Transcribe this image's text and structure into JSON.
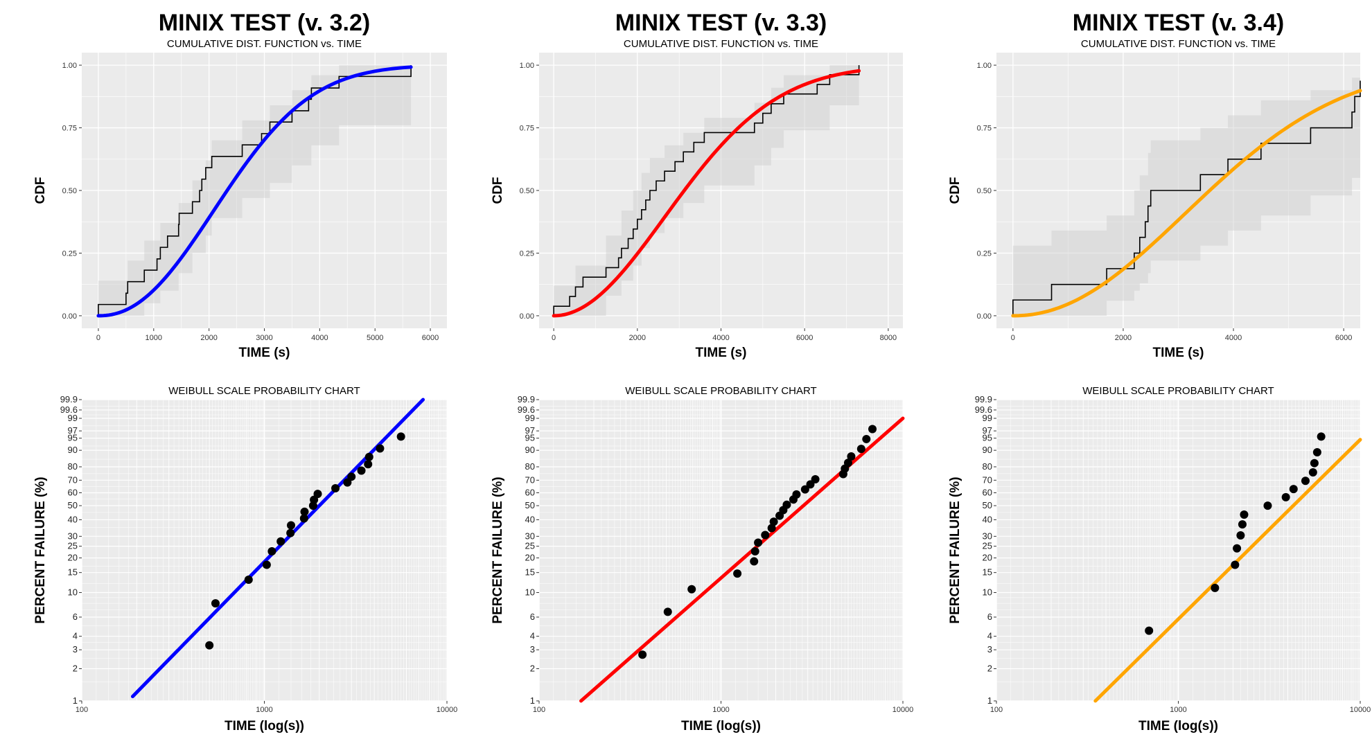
{
  "chart_data": [
    {
      "type": "line",
      "panel": "cdf",
      "title": "MINIX TEST (v. 3.2)",
      "subtitle": "CUMULATIVE DIST. FUNCTION vs. TIME",
      "xlabel": "TIME (s)",
      "ylabel": "CDF",
      "xlim": [
        -300,
        6300
      ],
      "ylim": [
        -0.05,
        1.05
      ],
      "xticks": [
        0,
        1000,
        2000,
        3000,
        4000,
        5000,
        6000
      ],
      "yticks": [
        "0.00",
        "0.25",
        "0.50",
        "0.75",
        "1.00"
      ],
      "fit_color": "#0000ff",
      "fit_weibull": {
        "shape": 2.2,
        "scale": 2750,
        "xmax": 5650
      },
      "ecdf": [
        [
          0,
          0.045
        ],
        [
          500,
          0.09
        ],
        [
          530,
          0.136
        ],
        [
          830,
          0.182
        ],
        [
          1060,
          0.227
        ],
        [
          1120,
          0.273
        ],
        [
          1250,
          0.318
        ],
        [
          1450,
          0.364
        ],
        [
          1460,
          0.409
        ],
        [
          1700,
          0.455
        ],
        [
          1830,
          0.5
        ],
        [
          1870,
          0.545
        ],
        [
          1940,
          0.591
        ],
        [
          2050,
          0.636
        ],
        [
          2600,
          0.682
        ],
        [
          2950,
          0.727
        ],
        [
          3100,
          0.773
        ],
        [
          3500,
          0.818
        ],
        [
          3800,
          0.864
        ],
        [
          3850,
          0.909
        ],
        [
          4350,
          0.955
        ],
        [
          5650,
          1.0
        ]
      ],
      "conf_band": [
        [
          0,
          0.0,
          0.14
        ],
        [
          530,
          0.0,
          0.22
        ],
        [
          830,
          0.05,
          0.3
        ],
        [
          1120,
          0.1,
          0.37
        ],
        [
          1450,
          0.17,
          0.45
        ],
        [
          1700,
          0.25,
          0.54
        ],
        [
          1940,
          0.32,
          0.62
        ],
        [
          2050,
          0.39,
          0.7
        ],
        [
          2600,
          0.47,
          0.78
        ],
        [
          3100,
          0.53,
          0.84
        ],
        [
          3500,
          0.6,
          0.9
        ],
        [
          3850,
          0.68,
          0.96
        ],
        [
          4350,
          0.76,
          1.0
        ]
      ]
    },
    {
      "type": "line",
      "panel": "cdf",
      "title": "MINIX TEST (v. 3.3)",
      "subtitle": "CUMULATIVE DIST. FUNCTION vs. TIME",
      "xlabel": "TIME (s)",
      "ylabel": "CDF",
      "xlim": [
        -350,
        8350
      ],
      "ylim": [
        -0.05,
        1.05
      ],
      "xticks": [
        0,
        2000,
        4000,
        6000,
        8000
      ],
      "yticks": [
        "0.00",
        "0.25",
        "0.50",
        "0.75",
        "1.00"
      ],
      "fit_color": "#ff0000",
      "fit_weibull": {
        "shape": 2.0,
        "scale": 3750,
        "xmax": 7300
      },
      "ecdf": [
        [
          0,
          0.038
        ],
        [
          380,
          0.077
        ],
        [
          520,
          0.115
        ],
        [
          700,
          0.154
        ],
        [
          1250,
          0.192
        ],
        [
          1550,
          0.231
        ],
        [
          1620,
          0.269
        ],
        [
          1780,
          0.308
        ],
        [
          1900,
          0.346
        ],
        [
          2000,
          0.385
        ],
        [
          2100,
          0.423
        ],
        [
          2200,
          0.462
        ],
        [
          2300,
          0.5
        ],
        [
          2450,
          0.538
        ],
        [
          2650,
          0.577
        ],
        [
          2900,
          0.615
        ],
        [
          3100,
          0.654
        ],
        [
          3350,
          0.692
        ],
        [
          3600,
          0.731
        ],
        [
          4800,
          0.769
        ],
        [
          5000,
          0.808
        ],
        [
          5200,
          0.846
        ],
        [
          5500,
          0.885
        ],
        [
          6300,
          0.923
        ],
        [
          6600,
          0.962
        ],
        [
          7300,
          1.0
        ]
      ],
      "conf_band": [
        [
          0,
          0.0,
          0.12
        ],
        [
          520,
          0.0,
          0.2
        ],
        [
          1250,
          0.08,
          0.32
        ],
        [
          1620,
          0.14,
          0.42
        ],
        [
          1900,
          0.2,
          0.5
        ],
        [
          2100,
          0.27,
          0.57
        ],
        [
          2300,
          0.33,
          0.63
        ],
        [
          2650,
          0.39,
          0.68
        ],
        [
          3100,
          0.45,
          0.73
        ],
        [
          3600,
          0.52,
          0.79
        ],
        [
          4800,
          0.6,
          0.85
        ],
        [
          5200,
          0.67,
          0.91
        ],
        [
          5500,
          0.74,
          0.96
        ],
        [
          6600,
          0.84,
          1.0
        ]
      ]
    },
    {
      "type": "line",
      "panel": "cdf",
      "title": "MINIX TEST (v. 3.4)",
      "subtitle": "CUMULATIVE DIST. FUNCTION vs. TIME",
      "xlabel": "TIME (s)",
      "ylabel": "CDF",
      "xlim": [
        -300,
        6300
      ],
      "ylim": [
        -0.05,
        1.05
      ],
      "xticks": [
        0,
        2000,
        4000,
        6000
      ],
      "yticks": [
        "0.00",
        "0.25",
        "0.50",
        "0.75",
        "1.00"
      ],
      "fit_color": "#ffa500",
      "fit_weibull": {
        "shape": 2.1,
        "scale": 4250,
        "xmax": 6300
      },
      "ecdf": [
        [
          0,
          0.063
        ],
        [
          700,
          0.125
        ],
        [
          1700,
          0.188
        ],
        [
          2200,
          0.25
        ],
        [
          2300,
          0.313
        ],
        [
          2400,
          0.375
        ],
        [
          2450,
          0.438
        ],
        [
          2500,
          0.5
        ],
        [
          3400,
          0.563
        ],
        [
          3900,
          0.625
        ],
        [
          4500,
          0.688
        ],
        [
          5400,
          0.75
        ],
        [
          6150,
          0.813
        ],
        [
          6200,
          0.875
        ],
        [
          6300,
          0.938
        ]
      ],
      "conf_band": [
        [
          0,
          0.0,
          0.28
        ],
        [
          700,
          0.0,
          0.34
        ],
        [
          1700,
          0.06,
          0.4
        ],
        [
          2200,
          0.1,
          0.5
        ],
        [
          2300,
          0.13,
          0.56
        ],
        [
          2450,
          0.17,
          0.65
        ],
        [
          2500,
          0.22,
          0.7
        ],
        [
          3400,
          0.28,
          0.75
        ],
        [
          3900,
          0.34,
          0.8
        ],
        [
          4500,
          0.4,
          0.86
        ],
        [
          5400,
          0.48,
          0.9
        ],
        [
          6150,
          0.55,
          0.95
        ]
      ]
    },
    {
      "type": "scatter",
      "panel": "weibull",
      "subtitle": "WEIBULL SCALE PROBABILITY CHART",
      "xlabel": "TIME (log(s))",
      "ylabel": "PERCENT FAILURE (%)",
      "xlim": [
        100,
        10000
      ],
      "xticks": [
        "100",
        "1000",
        "10000"
      ],
      "ylim_percent": [
        1,
        99.9
      ],
      "yticks": [
        "1",
        "2",
        "3",
        "4",
        "6",
        "10",
        "15",
        "20",
        "25",
        "30",
        "40",
        "50",
        "60",
        "70",
        "80",
        "90",
        "95",
        "97",
        "99",
        "99.6",
        "99.9"
      ],
      "line_color": "#0000ff",
      "line": {
        "x": [
          190,
          7400
        ],
        "y": [
          1.1,
          99.9
        ]
      },
      "points": {
        "x": [
          500,
          540,
          820,
          1030,
          1100,
          1230,
          1390,
          1400,
          1650,
          1660,
          1850,
          1870,
          1960,
          2450,
          2850,
          3000,
          3400,
          3700,
          3750,
          4300,
          5600
        ],
        "y": [
          3.3,
          8.0,
          13.0,
          17.5,
          22.7,
          27.3,
          31.8,
          36.4,
          40.9,
          45.5,
          50.0,
          54.5,
          59.1,
          63.6,
          68.2,
          72.7,
          77.3,
          81.8,
          86.4,
          90.9,
          95.5
        ]
      }
    },
    {
      "type": "scatter",
      "panel": "weibull",
      "subtitle": "WEIBULL SCALE PROBABILITY CHART",
      "xlabel": "TIME (log(s))",
      "ylabel": "PERCENT FAILURE (%)",
      "xlim": [
        100,
        10000
      ],
      "xticks": [
        "100",
        "1000",
        "10000"
      ],
      "ylim_percent": [
        1,
        99.9
      ],
      "yticks": [
        "1",
        "2",
        "3",
        "4",
        "6",
        "10",
        "15",
        "20",
        "25",
        "30",
        "40",
        "50",
        "60",
        "70",
        "80",
        "90",
        "95",
        "97",
        "99",
        "99.6",
        "99.9"
      ],
      "line_color": "#ff0000",
      "line": {
        "x": [
          170,
          10000
        ],
        "y": [
          1.0,
          99.0
        ]
      },
      "points": {
        "x": [
          370,
          510,
          690,
          1230,
          1520,
          1540,
          1600,
          1750,
          1900,
          1950,
          2100,
          2200,
          2300,
          2500,
          2600,
          2900,
          3100,
          3300,
          4700,
          4800,
          5000,
          5200,
          5900,
          6300,
          6800
        ],
        "y": [
          2.7,
          6.7,
          10.7,
          14.7,
          18.7,
          22.7,
          26.7,
          30.7,
          34.7,
          38.7,
          42.7,
          46.7,
          50.7,
          54.7,
          58.7,
          62.7,
          66.7,
          70.7,
          74.7,
          78.7,
          82.7,
          86.7,
          90.7,
          94.7,
          97.4
        ]
      }
    },
    {
      "type": "scatter",
      "panel": "weibull",
      "subtitle": "WEIBULL SCALE PROBABILITY CHART",
      "xlabel": "TIME (log(s))",
      "ylabel": "PERCENT FAILURE (%)",
      "xlim": [
        100,
        10000
      ],
      "xticks": [
        "100",
        "1000",
        "10000"
      ],
      "ylim_percent": [
        1,
        99.9
      ],
      "yticks": [
        "1",
        "2",
        "3",
        "4",
        "6",
        "10",
        "15",
        "20",
        "25",
        "30",
        "40",
        "50",
        "60",
        "70",
        "80",
        "90",
        "95",
        "97",
        "99",
        "99.6",
        "99.9"
      ],
      "line_color": "#ffa500",
      "line": {
        "x": [
          350,
          10000
        ],
        "y": [
          1.0,
          94.5
        ]
      },
      "points": {
        "x": [
          690,
          1590,
          2050,
          2100,
          2200,
          2250,
          2300,
          3100,
          3900,
          4300,
          5000,
          5500,
          5600,
          5800,
          6100
        ],
        "y": [
          4.5,
          11.0,
          17.5,
          24.0,
          30.5,
          37.0,
          43.5,
          50.0,
          56.5,
          63.0,
          69.5,
          76.0,
          82.5,
          89.0,
          95.5
        ]
      }
    }
  ]
}
